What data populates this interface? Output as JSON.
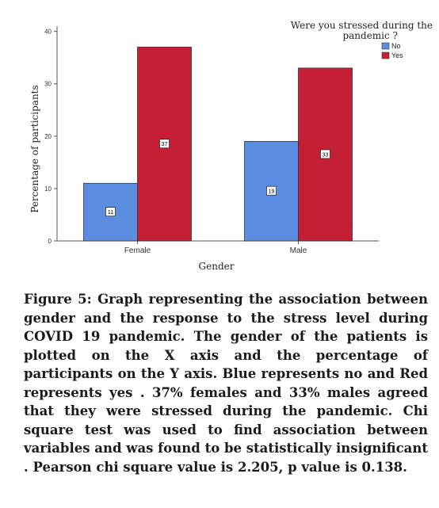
{
  "chart_data": {
    "type": "bar",
    "xlabel": "Gender",
    "ylabel": "Percentage of participants",
    "categories": [
      "Female",
      "Male"
    ],
    "series": [
      {
        "name": "No",
        "values": [
          11,
          19
        ],
        "color": "#5b8de0"
      },
      {
        "name": "Yes",
        "values": [
          37,
          33
        ],
        "color": "#c41f35"
      }
    ],
    "data_labels": {
      "No": [
        "11",
        "19"
      ],
      "Yes": [
        "37",
        "33"
      ]
    },
    "ylim": [
      0,
      41
    ],
    "yticks": [
      0,
      10,
      20,
      30,
      40
    ],
    "legend": {
      "title": "Were you stressed during the pandemic ?",
      "placement": "top-right"
    },
    "grid": false
  },
  "caption": "Figure 5: Graph representing the association between gender and the response to the stress level during COVID 19 pandemic. The gender of the patients is plotted on the X axis and the percentage of participants on the Y axis. Blue represents no and Red represents yes . 37% females and 33% males agreed that they were stressed during the pandemic. Chi square test was used to find association between variables and was found to be statistically insignificant . Pearson chi square value is 2.205, p value is 0.138."
}
